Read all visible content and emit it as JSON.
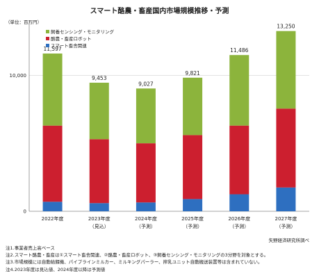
{
  "title": "スマート酪農・畜産国内市場規模推移・予測",
  "unit_label": "（単位：百万円）",
  "source": "矢野経済研究所調べ",
  "notes": [
    "注1.事業者売上高ベース",
    "注2.スマート酪農・畜産は①スマート畜舎関連、②酪農・畜産ロボット、③飼養センシング・モニタリングの3分野を対象とする。",
    "注3.市場規模には自動給餌機、パイプラインミルカー、ミルキングパーラー、搾乳ユニット自動搬送装置等は含まれていない。",
    "注4.2023年度は見込値、2024年度以降は予測値"
  ],
  "colors": {
    "green": "#8cb43c",
    "red": "#cc1f2f",
    "blue": "#2e6fc0",
    "axis": "#888888",
    "grid": "#d0d0d0"
  },
  "chart_data": {
    "type": "bar",
    "stacked": true,
    "categories": [
      [
        "2022年度",
        ""
      ],
      [
        "2023年度",
        "（見込）"
      ],
      [
        "2024年度",
        "（予測）"
      ],
      [
        "2025年度",
        "（予測）"
      ],
      [
        "2026年度",
        "（予測）"
      ],
      [
        "2027年度",
        "（予測）"
      ]
    ],
    "series": [
      {
        "name": "スマート畜舎関連",
        "color": "#2e6fc0",
        "values": [
          700,
          600,
          650,
          900,
          1250,
          1750
        ]
      },
      {
        "name": "酪農・畜産ロボット",
        "color": "#cc1f2f",
        "values": [
          5600,
          4700,
          4350,
          4700,
          5050,
          5800
        ]
      },
      {
        "name": "飼養センシング・モニタリング",
        "color": "#8cb43c",
        "values": [
          5297,
          4153,
          4027,
          4221,
          5186,
          5700
        ]
      }
    ],
    "legend_order": [
      "飼養センシング・モニタリング",
      "酪農・畜産ロボット",
      "スマート畜舎関連"
    ],
    "totals": [
      "11,597",
      "9,453",
      "9,027",
      "9,821",
      "11,486",
      "13,250"
    ],
    "total_values": [
      11597,
      9453,
      9027,
      9821,
      11486,
      13250
    ],
    "yticks": [
      0,
      10000
    ],
    "ytick_labels": [
      "0",
      "10,000"
    ],
    "ylim": [
      0,
      14000
    ],
    "legend_position": "top-left",
    "grid": true
  }
}
